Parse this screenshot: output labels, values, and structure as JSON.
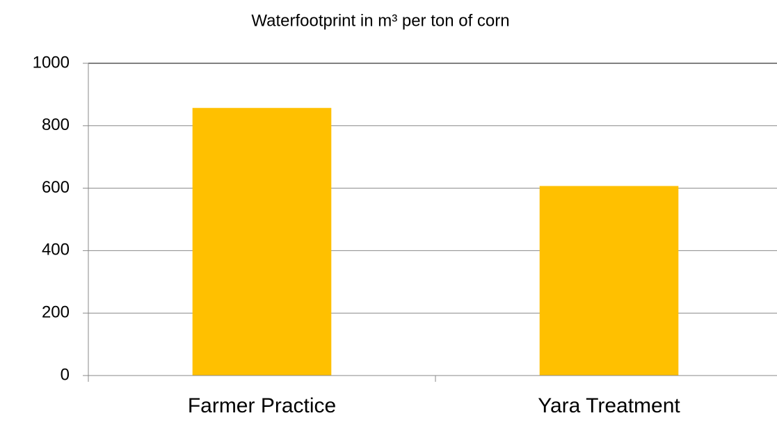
{
  "chart_data": {
    "type": "bar",
    "title": "Waterfootprint in m³ per ton of corn",
    "categories": [
      "Farmer Practice",
      "Yara Treatment"
    ],
    "values": [
      857,
      607
    ],
    "color": "#ffc000",
    "ylim": [
      0,
      1000
    ],
    "yticks": [
      0,
      200,
      400,
      600,
      800,
      1000
    ],
    "grid": true
  }
}
